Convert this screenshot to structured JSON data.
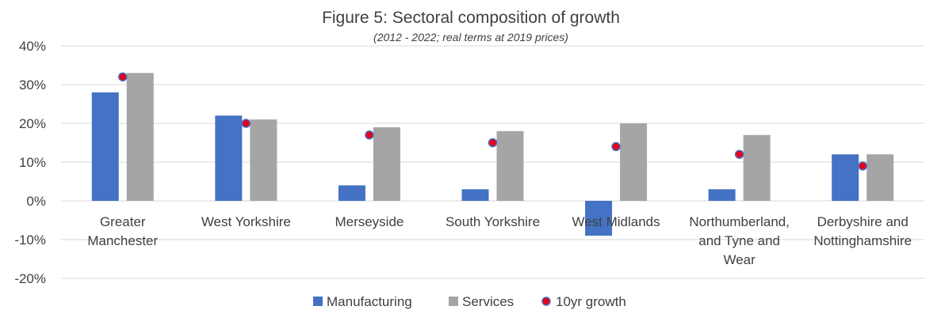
{
  "chart_data": {
    "type": "bar",
    "title": "Figure 5: Sectoral composition of growth",
    "subtitle": "(2012 - 2022; real terms at 2019 prices)",
    "categories": [
      [
        "Greater",
        "Manchester"
      ],
      [
        "West Yorkshire"
      ],
      [
        "Merseyside"
      ],
      [
        "South Yorkshire"
      ],
      [
        "West Midlands"
      ],
      [
        "Northumberland,",
        "and Tyne and",
        "Wear"
      ],
      [
        "Derbyshire and",
        "Nottinghamshire"
      ]
    ],
    "series": [
      {
        "name": "Manufacturing",
        "type": "bar",
        "values": [
          28,
          22,
          4,
          3,
          -9,
          3,
          12
        ]
      },
      {
        "name": "Services",
        "type": "bar",
        "values": [
          33,
          21,
          19,
          18,
          20,
          17,
          12
        ]
      },
      {
        "name": "10yr growth",
        "type": "scatter",
        "values": [
          32,
          20,
          17,
          15,
          14,
          12,
          9
        ]
      }
    ],
    "ylim": [
      -20,
      40
    ],
    "yticks": [
      -20,
      -10,
      0,
      10,
      20,
      30,
      40
    ],
    "ytick_labels": [
      "-20%",
      "-10%",
      "0%",
      "10%",
      "20%",
      "30%",
      "40%"
    ],
    "grid": true,
    "legend": "bottom",
    "colors": {
      "manufacturing": "#4472c4",
      "services": "#a5a5a5",
      "growth_fill": "#e8001c",
      "growth_edge": "#4472c4"
    }
  }
}
